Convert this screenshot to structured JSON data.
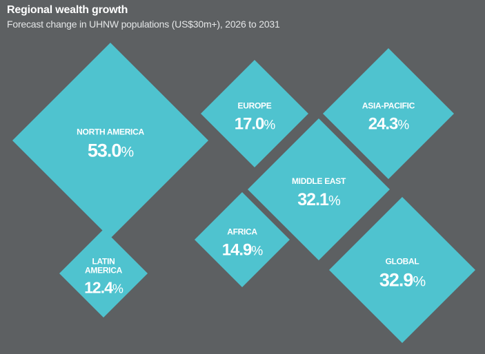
{
  "header": {
    "title": "Regional wealth growth",
    "subtitle": "Forecast change in UHNW populations (US$30m+), 2026 to 2031"
  },
  "chart_data": {
    "type": "diamond",
    "unit": "%",
    "fill_color": "#4fc3cf",
    "background_color": "#5d6062",
    "points": [
      {
        "label": [
          "NORTH AMERICA"
        ],
        "value": 53.0
      },
      {
        "label": [
          "EUROPE"
        ],
        "value": 17.0
      },
      {
        "label": [
          "ASIA-PACIFIC"
        ],
        "value": 24.3
      },
      {
        "label": [
          "MIDDLE EAST"
        ],
        "value": 32.1
      },
      {
        "label": [
          "AFRICA"
        ],
        "value": 14.9
      },
      {
        "label": [
          "LATIN",
          "AMERICA"
        ],
        "value": 12.4
      },
      {
        "label": [
          "GLOBAL"
        ],
        "value": 32.9
      }
    ]
  }
}
